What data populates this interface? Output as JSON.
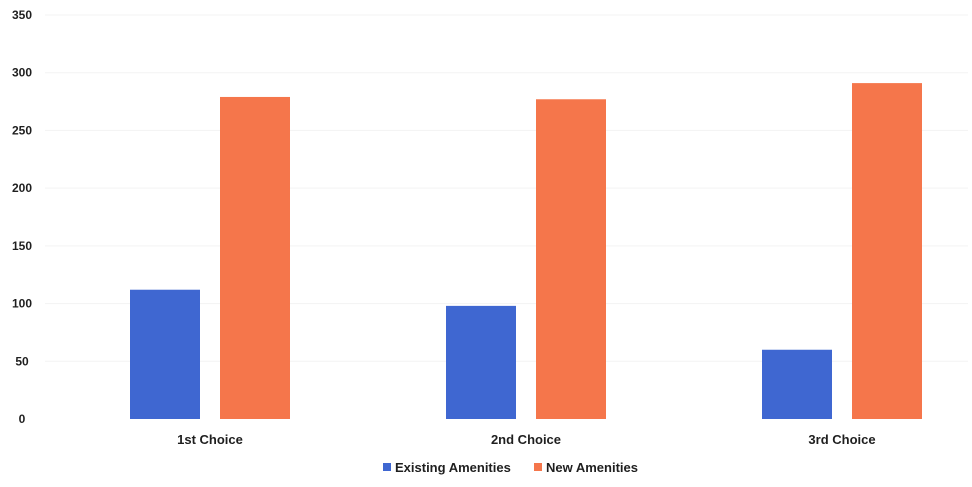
{
  "chart_data": {
    "type": "bar",
    "categories": [
      "1st Choice",
      "2nd Choice",
      "3rd Choice"
    ],
    "series": [
      {
        "name": "Existing Amenities",
        "values": [
          112,
          98,
          60
        ],
        "color": "#3f67d1"
      },
      {
        "name": "New Amenities",
        "values": [
          279,
          277,
          291
        ],
        "color": "#f5764b"
      }
    ],
    "ylim": [
      0,
      350
    ],
    "yticks": [
      "0",
      "50",
      "100",
      "150",
      "200",
      "250",
      "300",
      "350"
    ],
    "grid": true,
    "legend_position": "bottom-center",
    "title": "",
    "xlabel": "",
    "ylabel": ""
  }
}
